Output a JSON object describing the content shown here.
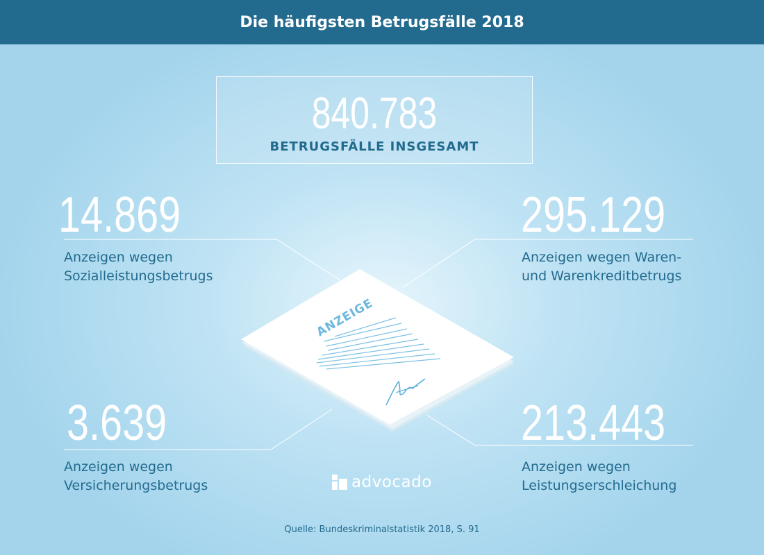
{
  "header": {
    "title": "Die häufigsten Betrugsfälle 2018"
  },
  "total": {
    "value": "840.783",
    "label": "BETRUGSFÄLLE INSGESAMT"
  },
  "stats": [
    {
      "value": "14.869",
      "line1": "Anzeigen wegen",
      "line2": "Sozialleistungsbetrugs"
    },
    {
      "value": "295.129",
      "line1": "Anzeigen wegen Waren-",
      "line2": "und Warenkreditbetrugs"
    },
    {
      "value": "3.639",
      "line1": "Anzeigen wegen",
      "line2": "Versicherungsbetrugs"
    },
    {
      "value": "213.443",
      "line1": "Anzeigen wegen",
      "line2": "Leistungserschleichung"
    }
  ],
  "document": {
    "stamp": "ANZEIGE"
  },
  "logo": {
    "text": "advocado"
  },
  "source": "Quelle: Bundeskriminalstatistik 2018, S. 91",
  "colors": {
    "header": "#236b8e",
    "accent_text": "#236b8e",
    "doc_accent": "#6bb7de"
  }
}
